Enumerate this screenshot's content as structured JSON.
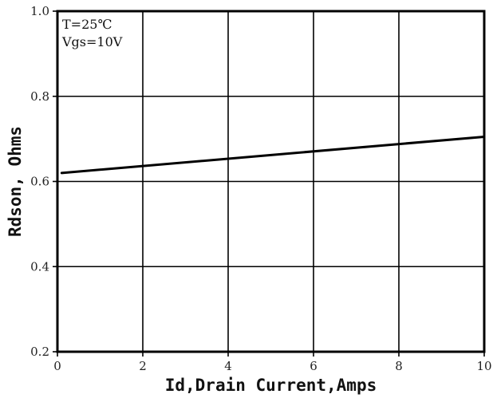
{
  "chart_data": {
    "type": "line",
    "title": "",
    "xlabel": "Id,Drain Current,Amps",
    "ylabel": "Rdson, Ohms",
    "xlim": [
      0,
      10
    ],
    "ylim": [
      0.2,
      1.0
    ],
    "x_ticks": [
      0,
      2,
      4,
      6,
      8,
      10
    ],
    "x_tick_labels": [
      "0",
      "2",
      "4",
      "6",
      "8",
      "10"
    ],
    "y_ticks": [
      0.2,
      0.4,
      0.6,
      0.8,
      1.0
    ],
    "y_tick_labels": [
      "0.2",
      "0.4",
      "0.6",
      "0.8",
      "1.0"
    ],
    "grid": true,
    "annotations": [
      "T=25℃",
      "Vgs=10V"
    ],
    "series": [
      {
        "x": [
          0.1,
          10
        ],
        "y": [
          0.62,
          0.705
        ],
        "color": "#000000"
      }
    ]
  }
}
